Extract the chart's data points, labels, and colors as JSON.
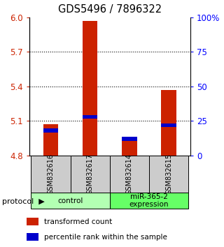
{
  "title": "GDS5496 / 7896322",
  "samples": [
    "GSM832616",
    "GSM832617",
    "GSM832614",
    "GSM832615"
  ],
  "group_control": "control",
  "group_mir": "miR-365-2\nexpression",
  "group_color_control": "#b3ffb3",
  "group_color_mir": "#66ff66",
  "ylim_left": [
    4.8,
    6.0
  ],
  "ylim_right": [
    0,
    100
  ],
  "yticks_left": [
    4.8,
    5.1,
    5.4,
    5.7,
    6.0
  ],
  "yticks_right": [
    0,
    25,
    50,
    75,
    100
  ],
  "ytick_labels_right": [
    "0",
    "25",
    "50",
    "75",
    "100%"
  ],
  "red_bar_tops": [
    5.07,
    5.97,
    4.93,
    5.37
  ],
  "red_bar_base": 4.8,
  "blue_bar_tops_pct": [
    18,
    28,
    12,
    22
  ],
  "bar_width": 0.38,
  "red_color": "#cc2200",
  "blue_color": "#0000cc",
  "sample_box_color": "#cccccc",
  "legend_red": "transformed count",
  "legend_blue": "percentile rank within the sample"
}
